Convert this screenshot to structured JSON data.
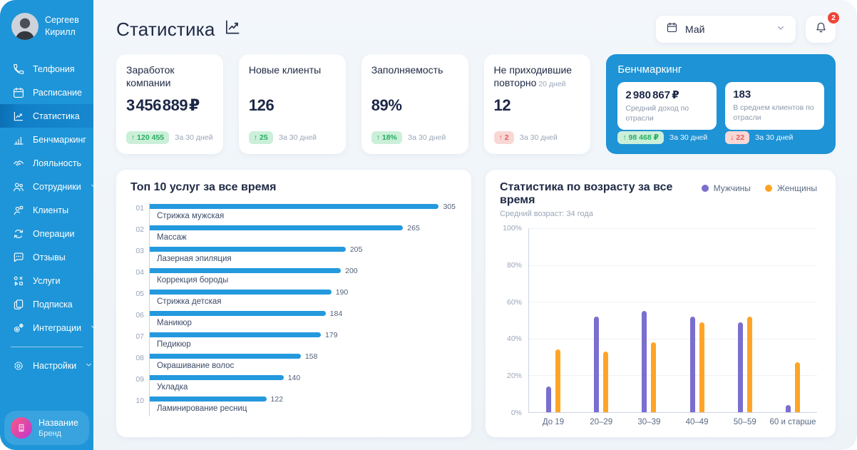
{
  "header": {
    "title": "Статистика",
    "period_select": {
      "value": "Май"
    },
    "notifications": {
      "count": "2"
    }
  },
  "sidebar": {
    "user": {
      "first_name": "Сергеев",
      "last_name": "Кирилл"
    },
    "items": [
      {
        "key": "telephony",
        "label": "Телфония",
        "icon": "phone-icon"
      },
      {
        "key": "schedule",
        "label": "Расписание",
        "icon": "calendar-icon"
      },
      {
        "key": "statistics",
        "label": "Статистика",
        "icon": "line-chart-icon",
        "active": true
      },
      {
        "key": "benchmarking",
        "label": "Бенчмаркинг",
        "icon": "bar-chart-icon"
      },
      {
        "key": "loyalty",
        "label": "Лояльность",
        "icon": "handshake-icon"
      },
      {
        "key": "employees",
        "label": "Сотрудники",
        "icon": "employees-icon",
        "chevron": true
      },
      {
        "key": "clients",
        "label": "Клиенты",
        "icon": "clients-icon"
      },
      {
        "key": "operations",
        "label": "Операции",
        "icon": "operations-icon"
      },
      {
        "key": "reviews",
        "label": "Отзывы",
        "icon": "reviews-icon"
      },
      {
        "key": "services",
        "label": "Услуги",
        "icon": "services-icon"
      },
      {
        "key": "subscription",
        "label": "Подписка",
        "icon": "subscription-icon"
      },
      {
        "key": "integrations",
        "label": "Интеграции",
        "icon": "integrations-icon",
        "chevron": true
      }
    ],
    "settings": {
      "key": "settings",
      "label": "Настройки",
      "icon": "settings-icon",
      "chevron": true
    },
    "brand": {
      "name": "Название",
      "type": "Бренд"
    }
  },
  "stat_cards": [
    {
      "title": "Заработок компании",
      "value": "3 456 889 ₽",
      "badge": {
        "text": "↑ 120 455",
        "type": "positive"
      },
      "period": "За 30 дней"
    },
    {
      "title": "Новые клиенты",
      "value": "126",
      "badge": {
        "text": "↑ 25",
        "type": "positive"
      },
      "period": "За 30 дней"
    },
    {
      "title": "Заполняемость",
      "value": "89%",
      "badge": {
        "text": "↑ 18%",
        "type": "positive"
      },
      "period": "За 30 дней"
    },
    {
      "title": "Не приходившие повторно",
      "title_note": "20 дней",
      "value": "12",
      "badge": {
        "text": "↑ 2",
        "type": "negative"
      },
      "period": "За 30 дней"
    }
  ],
  "benchmark": {
    "title": "Бенчмаркинг",
    "metrics": [
      {
        "value": "2 980 867 ₽",
        "caption": "Средний доход по отрасли",
        "badge": {
          "text": "↑ 98 468 ₽",
          "type": "positive"
        },
        "period": "За 30 дней"
      },
      {
        "value": "183",
        "caption": "В среднем клиентов по отрасли",
        "badge": {
          "text": "↓ 22",
          "type": "negative"
        },
        "period": "За 30 дней"
      }
    ]
  },
  "chart_data": [
    {
      "type": "bar",
      "orientation": "horizontal",
      "title": "Топ 10 услуг за все время",
      "ranks": [
        "01",
        "02",
        "03",
        "04",
        "05",
        "06",
        "07",
        "08",
        "09",
        "10"
      ],
      "categories": [
        "Стрижка мужская",
        "Массаж",
        "Лазерная эпиляция",
        "Коррекция бороды",
        "Стрижка детская",
        "Маникюр",
        "Педикюр",
        "Окрашивание волос",
        "Укладка",
        "Ламинирование ресниц"
      ],
      "values": [
        305,
        265,
        205,
        200,
        190,
        184,
        179,
        158,
        140,
        122
      ],
      "xlim": [
        0,
        320
      ],
      "bar_color": "#2499DE"
    },
    {
      "type": "bar",
      "title": "Статистика по возрасту за все время",
      "subtitle": "Средний возраст: 34 года",
      "categories": [
        "До 19",
        "20–29",
        "30–39",
        "40–49",
        "50–59",
        "60 и старше"
      ],
      "series": [
        {
          "name": "Мужчины",
          "color": "#7A6ECF",
          "values": [
            14,
            52,
            55,
            52,
            49,
            4
          ]
        },
        {
          "name": "Женщины",
          "color": "#FFA426",
          "values": [
            34,
            33,
            38,
            49,
            52,
            27
          ]
        }
      ],
      "y_ticks": [
        "100%",
        "80%",
        "60%",
        "40%",
        "20%",
        "0%"
      ],
      "y_tick_values": [
        100,
        80,
        60,
        40,
        20,
        0
      ],
      "ylim": [
        0,
        100
      ],
      "grid": true,
      "legend_position": "top-right"
    }
  ],
  "colors": {
    "sidebar": "#1E95D8",
    "benchmark_bg": "#1E93D6",
    "positive": "#27AE60",
    "negative": "#EB5757",
    "notification": "#EE4437",
    "male": "#7A6ECF",
    "female": "#FFA426",
    "service_bar": "#2499DE"
  }
}
